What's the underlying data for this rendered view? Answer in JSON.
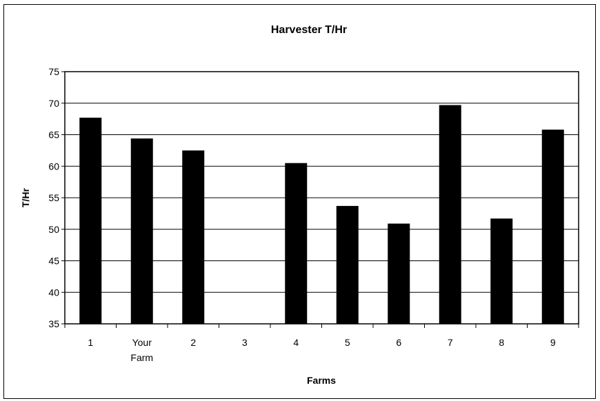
{
  "chart_data": {
    "type": "bar",
    "title": "Harvester T/Hr",
    "xlabel": "Farms",
    "ylabel": "T/Hr",
    "categories": [
      "1",
      "Your Farm",
      "2",
      "3",
      "4",
      "5",
      "6",
      "7",
      "8",
      "9"
    ],
    "category_lines": [
      [
        "1"
      ],
      [
        "Your",
        "Farm"
      ],
      [
        "2"
      ],
      [
        "3"
      ],
      [
        "4"
      ],
      [
        "5"
      ],
      [
        "6"
      ],
      [
        "7"
      ],
      [
        "8"
      ],
      [
        "9"
      ]
    ],
    "values": [
      67.7,
      64.4,
      62.5,
      null,
      60.5,
      53.7,
      50.9,
      69.7,
      51.7,
      65.8
    ],
    "ylim": [
      35,
      75
    ],
    "yticks": [
      35,
      40,
      45,
      50,
      55,
      60,
      65,
      70,
      75
    ],
    "grid": true,
    "bar_color": "#000000"
  }
}
